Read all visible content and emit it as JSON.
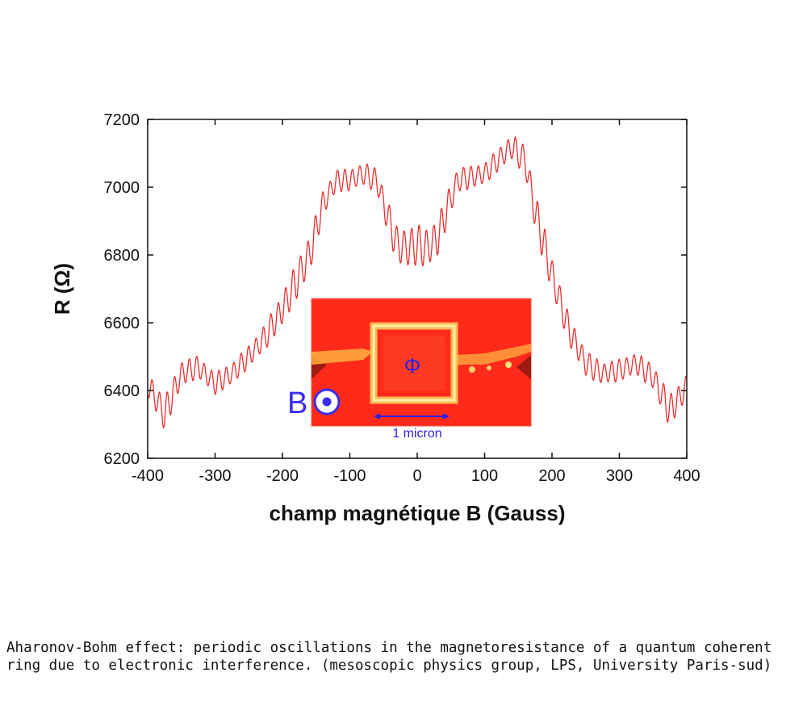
{
  "chart_data": {
    "type": "line",
    "title": "",
    "xlabel": "champ magnétique B (Gauss)",
    "ylabel": "R (Ω)",
    "xlim": [
      -400,
      400
    ],
    "ylim": [
      6200,
      7200
    ],
    "xticks": [
      -400,
      -300,
      -200,
      -100,
      0,
      100,
      200,
      300,
      400
    ],
    "xtick_labels": [
      "-400",
      "-300",
      "-200",
      "-100",
      "0",
      "100",
      "200",
      "300",
      "400"
    ],
    "yticks": [
      6200,
      6400,
      6600,
      6800,
      7000,
      7200
    ],
    "ytick_labels": [
      "6200",
      "6400",
      "6600",
      "6800",
      "7000",
      "7200"
    ],
    "grid": false,
    "line_color": "#e8302e",
    "oscillation_period_gauss": 11,
    "series": [
      {
        "x": [
          -400,
          -375,
          -350,
          -325,
          -300,
          -275,
          -250,
          -225,
          -200,
          -175,
          -160,
          -140,
          -120,
          -100,
          -80,
          -60,
          -45,
          -30,
          -15,
          0,
          15,
          30,
          45,
          60,
          80,
          100,
          120,
          140,
          160,
          175,
          200,
          225,
          250,
          275,
          300,
          325,
          350,
          375,
          400
        ],
        "y": [
          6420,
          6330,
          6450,
          6470,
          6420,
          6450,
          6500,
          6560,
          6640,
          6740,
          6800,
          6950,
          7020,
          7020,
          7040,
          7020,
          6920,
          6830,
          6820,
          6830,
          6820,
          6850,
          6940,
          7020,
          7030,
          7040,
          7080,
          7120,
          7080,
          6930,
          6740,
          6580,
          6480,
          6450,
          6460,
          6480,
          6440,
          6340,
          6410
        ],
        "oscillation_amplitude": [
          70,
          90,
          70,
          60,
          60,
          60,
          60,
          70,
          90,
          100,
          110,
          70,
          60,
          60,
          60,
          70,
          90,
          100,
          110,
          110,
          110,
          100,
          90,
          70,
          60,
          60,
          60,
          70,
          80,
          110,
          100,
          80,
          70,
          60,
          60,
          60,
          70,
          90,
          70
        ]
      }
    ]
  },
  "inset": {
    "flux_symbol": "Φ",
    "scale_label": "1 micron",
    "field_label": "B"
  },
  "caption": "Aharonov-Bohm effect: periodic oscillations in the magnetoresistance of a quantum coherent ring due to electronic interference. (mesoscopic physics group, LPS, University Paris-sud)"
}
